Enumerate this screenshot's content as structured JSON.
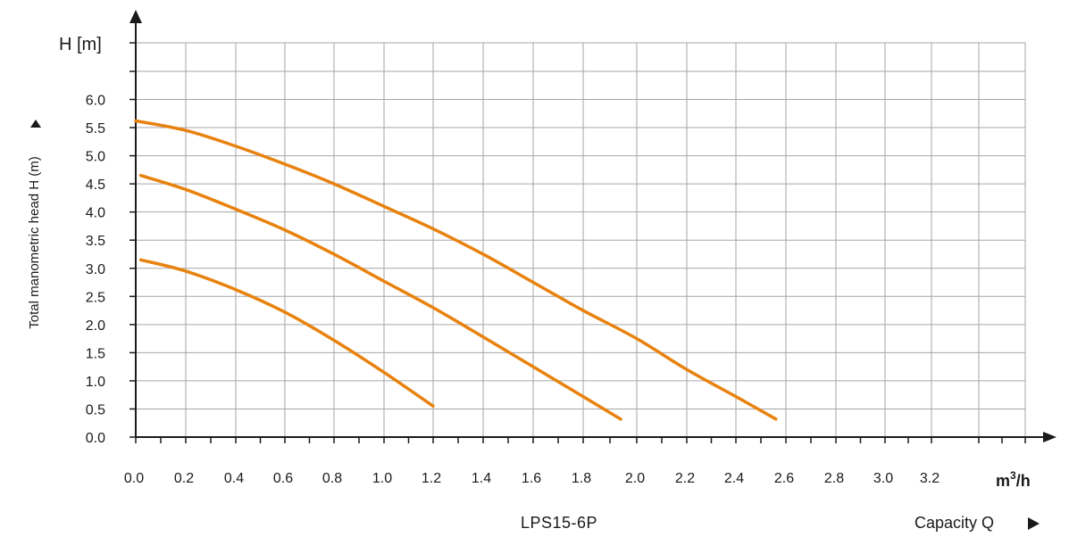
{
  "chart_data": {
    "type": "line",
    "y_axis_title": "H [m]",
    "ylabel": "Total manometric head H  (m)",
    "model_label": "LPS15-6P",
    "x_unit_base": "m",
    "x_unit_sup": "3",
    "x_unit_tail": "/h",
    "capacity_label": "Capacity Q",
    "x_tick_labels": [
      {
        "x": 0.0,
        "text": "0.0"
      },
      {
        "x": 0.2,
        "text": "0.2"
      },
      {
        "x": 0.4,
        "text": "0.4"
      },
      {
        "x": 0.6,
        "text": "0.6"
      },
      {
        "x": 0.8,
        "text": "0.8"
      },
      {
        "x": 1.0,
        "text": "1.0"
      },
      {
        "x": 1.2,
        "text": "1.2"
      },
      {
        "x": 1.4,
        "text": "1.4"
      },
      {
        "x": 1.6,
        "text": "1.6"
      },
      {
        "x": 1.8,
        "text": "1.8"
      },
      {
        "x": 2.0,
        "text": "2.0"
      },
      {
        "x": 2.2,
        "text": "2.2"
      },
      {
        "x": 2.4,
        "text": "2.4"
      },
      {
        "x": 2.6,
        "text": "2.6"
      },
      {
        "x": 2.8,
        "text": "2.8"
      },
      {
        "x": 3.0,
        "text": "3.0"
      },
      {
        "x": 3.2,
        "text": "3.2"
      }
    ],
    "y_tick_labels": [
      {
        "y": 0.0,
        "text": "0.0"
      },
      {
        "y": 0.5,
        "text": "0.5"
      },
      {
        "y": 1.0,
        "text": "1.0"
      },
      {
        "y": 1.5,
        "text": "1.5"
      },
      {
        "y": 2.0,
        "text": "2.0"
      },
      {
        "y": 2.5,
        "text": "2.5"
      },
      {
        "y": 3.0,
        "text": "3.0"
      },
      {
        "y": 3.5,
        "text": "3.5"
      },
      {
        "y": 4.0,
        "text": "4.0"
      },
      {
        "y": 4.5,
        "text": "4.5"
      },
      {
        "y": 5.0,
        "text": "5.0"
      },
      {
        "y": 5.5,
        "text": "5.5"
      },
      {
        "y": 6.0,
        "text": "6.0"
      }
    ],
    "xlim": [
      0,
      3.6
    ],
    "ylim": [
      0,
      7.0
    ],
    "grid": true,
    "curve_color": "#e8820e",
    "series": [
      {
        "points": [
          [
            0.0,
            5.62
          ],
          [
            0.2,
            5.45
          ],
          [
            0.4,
            5.17
          ],
          [
            0.6,
            4.85
          ],
          [
            0.8,
            4.5
          ],
          [
            1.0,
            4.1
          ],
          [
            1.2,
            3.7
          ],
          [
            1.4,
            3.25
          ],
          [
            1.6,
            2.75
          ],
          [
            1.8,
            2.25
          ],
          [
            2.0,
            1.75
          ],
          [
            2.2,
            1.2
          ],
          [
            2.4,
            0.72
          ],
          [
            2.56,
            0.32
          ]
        ]
      },
      {
        "points": [
          [
            0.02,
            4.65
          ],
          [
            0.2,
            4.4
          ],
          [
            0.4,
            4.05
          ],
          [
            0.6,
            3.68
          ],
          [
            0.8,
            3.25
          ],
          [
            1.0,
            2.77
          ],
          [
            1.2,
            2.3
          ],
          [
            1.4,
            1.78
          ],
          [
            1.6,
            1.25
          ],
          [
            1.8,
            0.72
          ],
          [
            1.94,
            0.32
          ]
        ]
      },
      {
        "points": [
          [
            0.02,
            3.15
          ],
          [
            0.2,
            2.95
          ],
          [
            0.4,
            2.62
          ],
          [
            0.6,
            2.22
          ],
          [
            0.8,
            1.72
          ],
          [
            1.0,
            1.15
          ],
          [
            1.2,
            0.55
          ]
        ]
      }
    ]
  }
}
